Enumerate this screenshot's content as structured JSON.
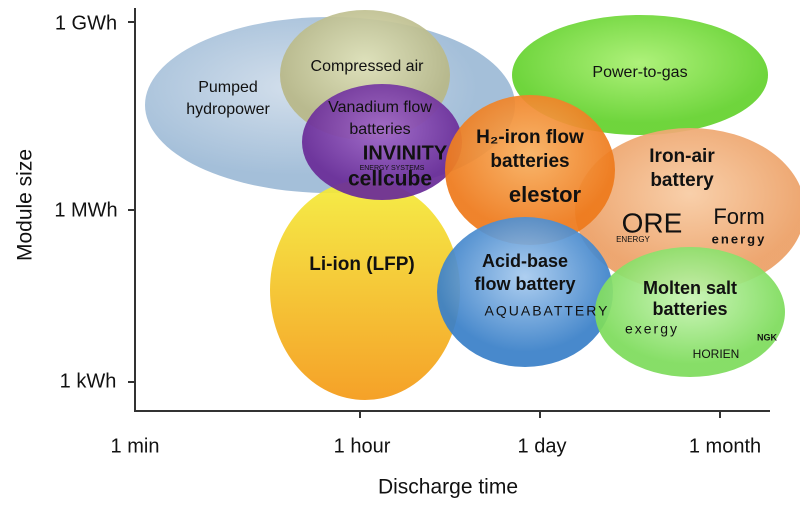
{
  "axes": {
    "y_title": "Module size",
    "x_title": "Discharge time",
    "y_ticks": [
      "1 GWh",
      "1 MWh",
      "1 kWh"
    ],
    "x_ticks": [
      "1 min",
      "1 hour",
      "1 day",
      "1 month"
    ]
  },
  "nodes": [
    {
      "label": [
        "Pumped",
        "hydropower"
      ],
      "logos": []
    },
    {
      "label": [
        "Li-ion (LFP)"
      ],
      "logos": []
    },
    {
      "label": [
        "Compressed air"
      ],
      "logos": []
    },
    {
      "label": [
        "Vanadium flow",
        "batteries"
      ],
      "logos": [
        "INVINITY",
        "ENERGY SYSTEMS",
        "cellcube"
      ]
    },
    {
      "label": [
        "Power-to-gas"
      ],
      "logos": []
    },
    {
      "label": [
        "Iron-air",
        "battery"
      ],
      "logos": [
        "ORE",
        "ENERGY",
        "Form",
        "energy"
      ]
    },
    {
      "label": [
        "H₂-iron flow",
        "batteries"
      ],
      "logos": [
        "elestor"
      ]
    },
    {
      "label": [
        "Acid-base",
        "flow battery"
      ],
      "logos": [
        "AQUABATTERY"
      ]
    },
    {
      "label": [
        "Molten salt",
        "batteries"
      ],
      "logos": [
        "exergy",
        "NGK",
        "HORIEN"
      ]
    }
  ]
}
